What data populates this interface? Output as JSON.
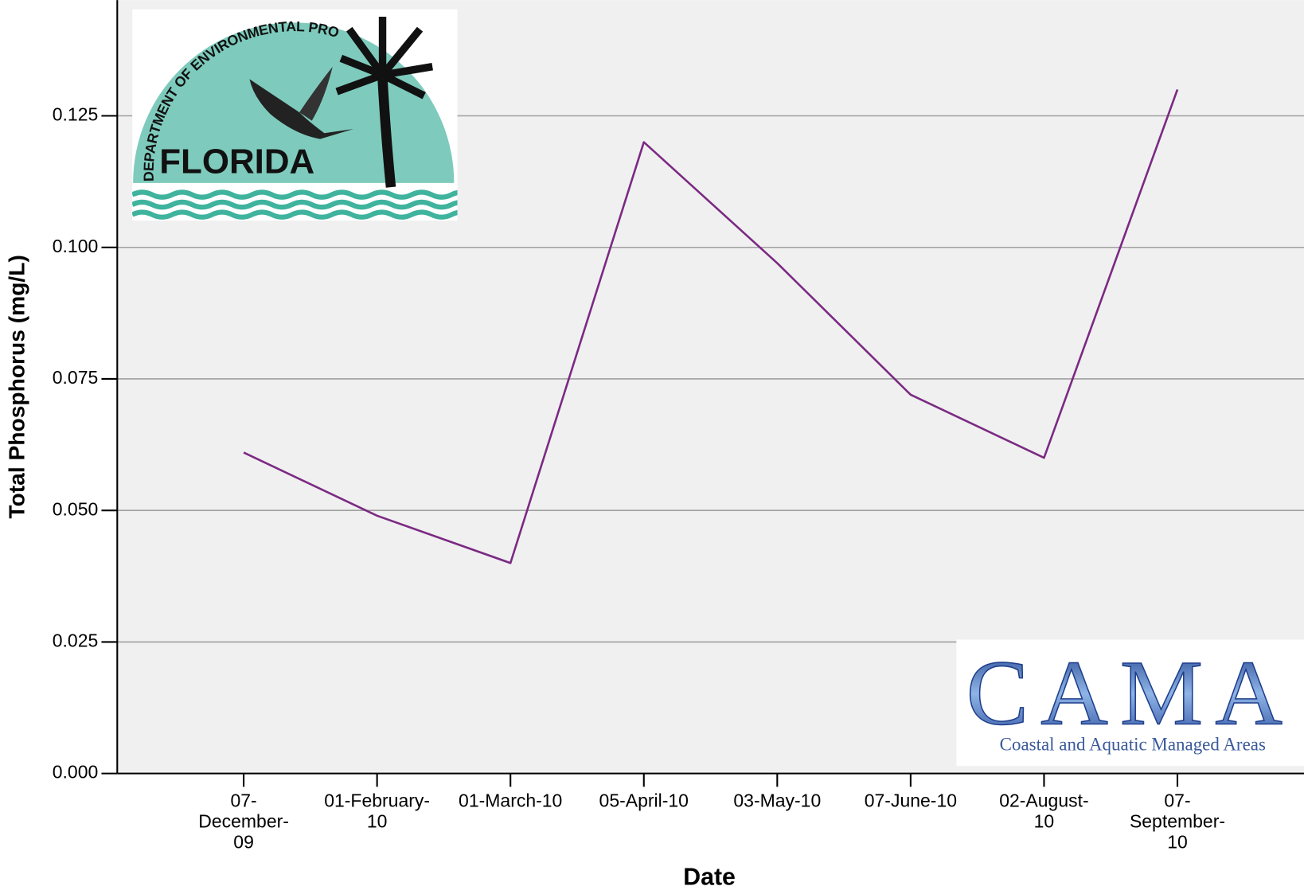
{
  "chart_data": {
    "type": "line",
    "x_label": "Date",
    "y_label": "Total Phosphorus (mg/L)",
    "categories": [
      "07-December-09",
      "01-February-10",
      "01-March-10",
      "05-April-10",
      "03-May-10",
      "07-June-10",
      "02-August-10",
      "07-September-10"
    ],
    "series": [
      {
        "name": "Total Phosphorus",
        "color": "#7b2a83",
        "values": [
          0.061,
          0.049,
          0.04,
          0.12,
          0.097,
          0.072,
          0.06,
          0.13
        ]
      }
    ],
    "ylim": [
      0,
      0.147
    ],
    "yticks": [
      {
        "value": 0,
        "label": "0.000"
      },
      {
        "value": 0.025,
        "label": "0.025"
      },
      {
        "value": 0.05,
        "label": "0.050"
      },
      {
        "value": 0.075,
        "label": "0.075"
      },
      {
        "value": 0.1,
        "label": "0.100"
      },
      {
        "value": 0.125,
        "label": "0.125"
      }
    ],
    "grid": true,
    "logos": {
      "fdep_arc": "DEPARTMENT OF ENVIRONMENTAL PROTECTION",
      "fdep_name": "FLORIDA",
      "cama_name": "CAMA",
      "cama_sub": "Coastal and Aquatic Managed Areas"
    }
  }
}
